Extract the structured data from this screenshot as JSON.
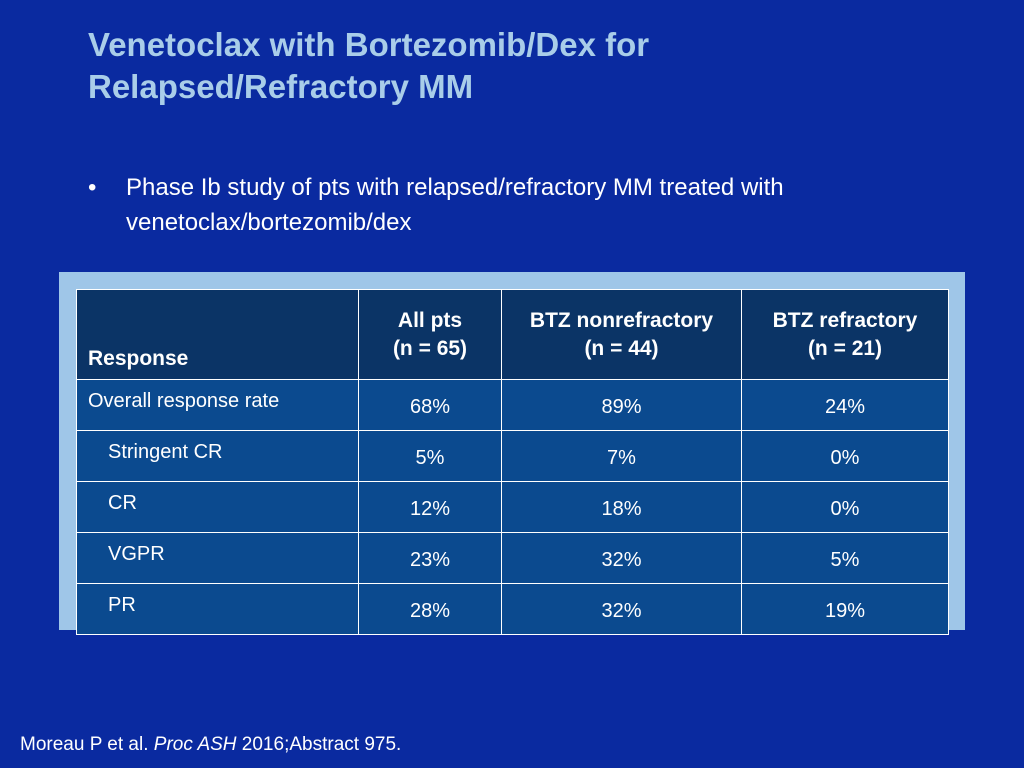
{
  "slide": {
    "title_line1": "Venetoclax with Bortezomib/Dex for",
    "title_line2": "Relapsed/Refractory MM",
    "bullet_marker": "•",
    "bullet_text": "Phase Ib study of pts with relapsed/refractory MM treated with venetoclax/bortezomib/dex",
    "footer_authors": "Moreau P et al.",
    "footer_journal": "Proc ASH",
    "footer_citation": "2016;Abstract 975."
  },
  "colors": {
    "background": "#0a2aa0",
    "title": "#a9cde9",
    "table_frame": "#9fc6e8",
    "table_header": "#0b3466",
    "table_cell": "#0b4a8f"
  },
  "table": {
    "headers": [
      {
        "line1": "Response",
        "line2": ""
      },
      {
        "line1": "All pts",
        "line2": "(n = 65)"
      },
      {
        "line1": "BTZ nonrefractory",
        "line2": "(n = 44)"
      },
      {
        "line1": "BTZ refractory",
        "line2": "(n = 21)"
      }
    ],
    "rows": [
      {
        "label": "Overall response rate",
        "values": [
          "68%",
          "89%",
          "24%"
        ]
      },
      {
        "label": "Stringent CR",
        "values": [
          "5%",
          "7%",
          "0%"
        ]
      },
      {
        "label": "CR",
        "values": [
          "12%",
          "18%",
          "0%"
        ]
      },
      {
        "label": "VGPR",
        "values": [
          "23%",
          "32%",
          "5%"
        ]
      },
      {
        "label": "PR",
        "values": [
          "28%",
          "32%",
          "19%"
        ]
      }
    ]
  }
}
